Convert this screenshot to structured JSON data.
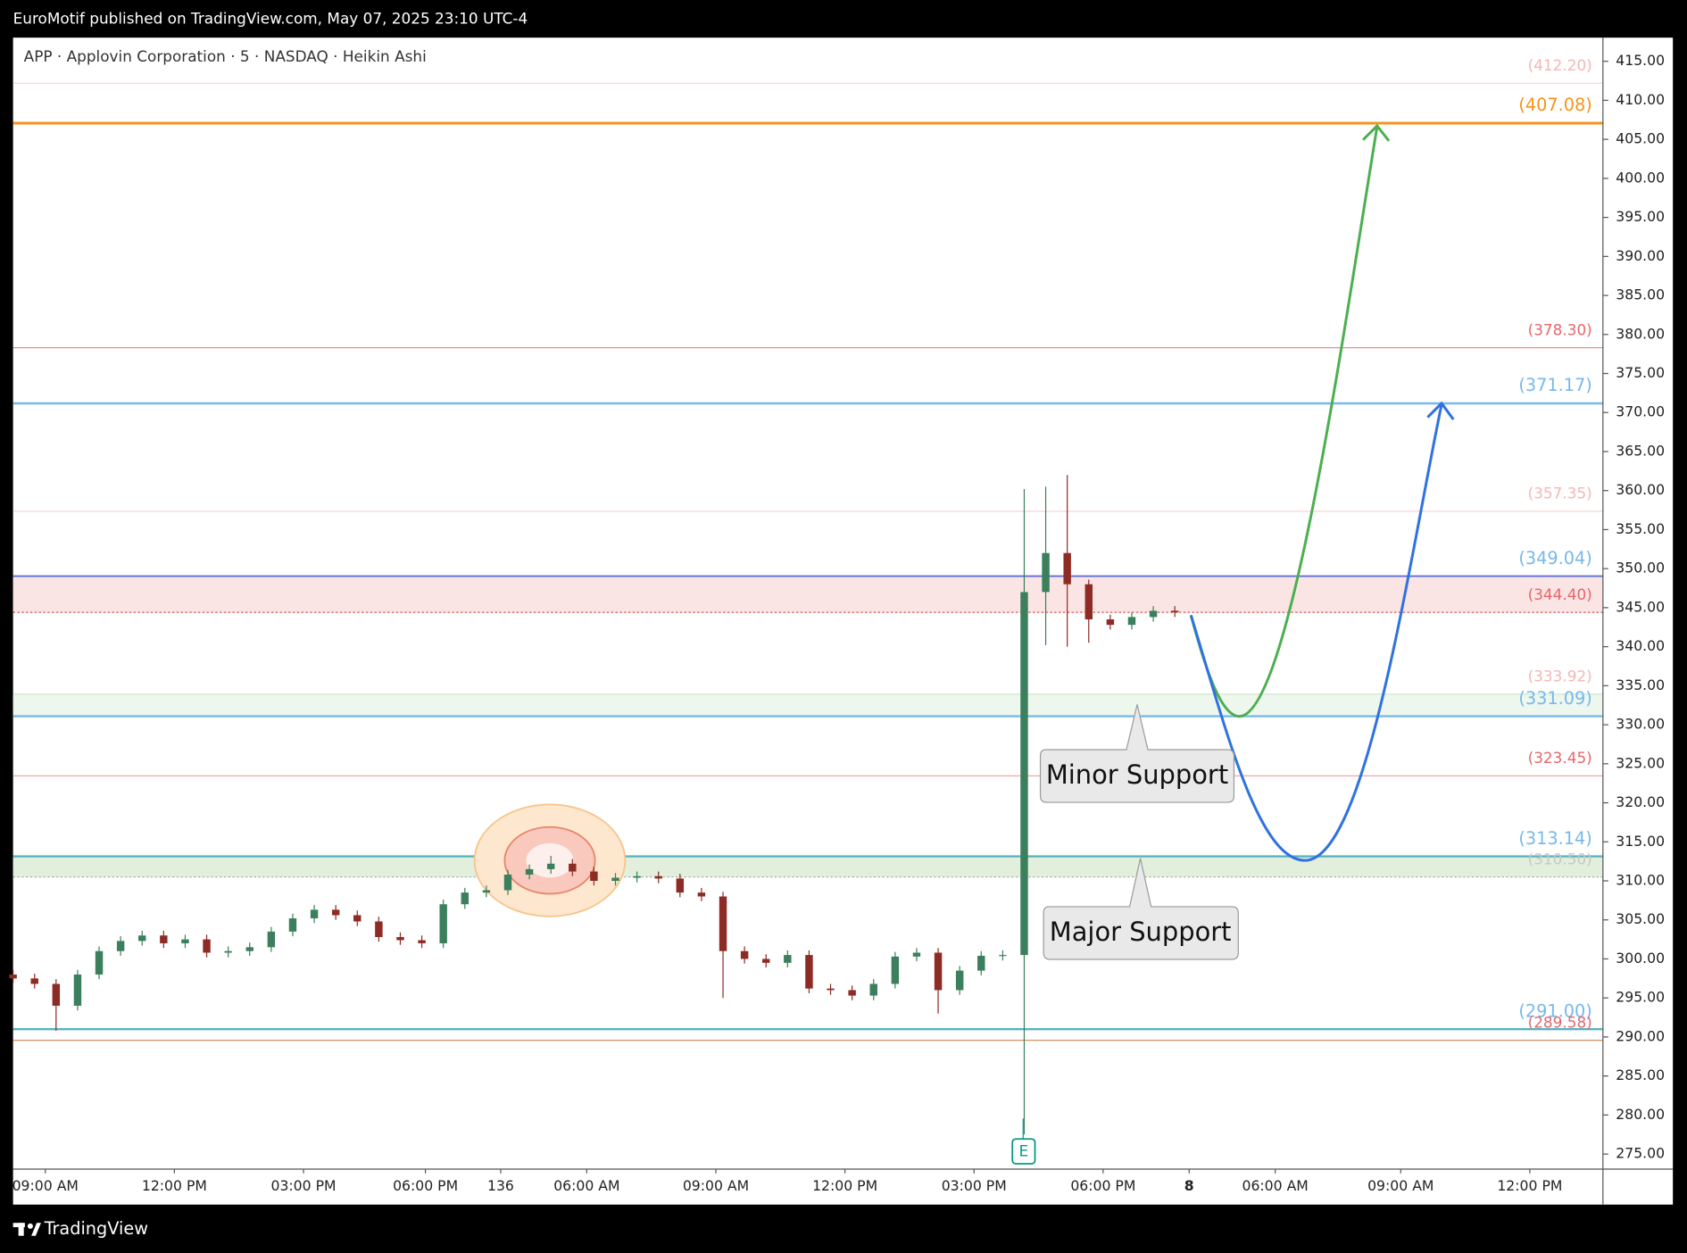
{
  "header": {
    "published": "EuroMotif published on TradingView.com, May 07, 2025 23:10 UTC-4"
  },
  "chart_data": {
    "type": "candlestick",
    "title": "APP · Applovin Corporation · 5 · NASDAQ · Heikin Ashi",
    "x": [
      0,
      6,
      12,
      18,
      24,
      30,
      36,
      42,
      48,
      54,
      60,
      66,
      72,
      78,
      84,
      90,
      96,
      102,
      108,
      114,
      120,
      126,
      132,
      138,
      144,
      150,
      156,
      162,
      168,
      174,
      180,
      186,
      192,
      198,
      204,
      210,
      216,
      222,
      228,
      234,
      240,
      246,
      252,
      258,
      264,
      270,
      276,
      282,
      288,
      294,
      300,
      306,
      312,
      318,
      324
    ],
    "open": [
      298,
      297.5,
      296.8,
      294,
      298,
      301,
      302.3,
      303,
      302,
      302.5,
      300.8,
      301,
      301.5,
      303.5,
      305.2,
      306.3,
      305.6,
      304.8,
      302.8,
      302.4,
      302,
      307,
      308.5,
      308.8,
      310.8,
      311.5,
      312.2,
      311.2,
      310,
      310.4,
      310.6,
      310.3,
      308.5,
      308,
      301,
      300,
      299.5,
      300.5,
      296.2,
      296,
      295.3,
      296.8,
      300.3,
      300.8,
      296,
      298.5,
      300.4,
      300.5,
      347,
      352,
      348,
      343.5,
      342.8,
      343.8,
      344.6
    ],
    "high": [
      298.6,
      298.1,
      297.4,
      298.6,
      301.6,
      302.9,
      303.6,
      303.6,
      303.1,
      303.1,
      301.6,
      302.1,
      304.1,
      305.8,
      306.9,
      306.9,
      306.2,
      305.4,
      303.4,
      303,
      307.6,
      309.1,
      309.4,
      311.4,
      312.1,
      313.2,
      312.8,
      311.8,
      311,
      311.2,
      311.2,
      310.9,
      309.1,
      308.6,
      301.6,
      300.6,
      301.1,
      301.1,
      296.8,
      296.6,
      297.4,
      300.9,
      301.4,
      301.4,
      299.1,
      301,
      301.1,
      360.2,
      360.5,
      362,
      348.6,
      344.1,
      344.4,
      345.2,
      345.2
    ],
    "low": [
      296.9,
      296.2,
      290.8,
      293.4,
      297.4,
      300.4,
      301.7,
      301.4,
      301.4,
      300.2,
      300.2,
      300.4,
      300.9,
      302.9,
      304.6,
      305,
      304.2,
      302.2,
      301.8,
      301.4,
      301.4,
      306.4,
      307.9,
      308.2,
      310.2,
      310.9,
      310.6,
      309.4,
      309.4,
      309.8,
      309.7,
      307.9,
      307.4,
      295,
      299.4,
      298.9,
      298.9,
      295.6,
      295.4,
      294.7,
      294.7,
      296.2,
      299.7,
      293,
      295.4,
      297.9,
      299.8,
      277.5,
      340.2,
      340,
      340.5,
      342.2,
      342.2,
      343.2,
      343.8
    ],
    "close": [
      297.5,
      296.8,
      294,
      298,
      301,
      302.3,
      303,
      302,
      302.5,
      300.8,
      301,
      301.5,
      303.5,
      305.2,
      306.3,
      305.6,
      304.8,
      302.8,
      302.4,
      302,
      307,
      308.5,
      308.8,
      310.8,
      311.5,
      312.2,
      311.2,
      310,
      310.4,
      310.6,
      310.3,
      308.5,
      308,
      301,
      300,
      299.5,
      300.5,
      296.2,
      296,
      295.3,
      296.8,
      300.3,
      300.8,
      296,
      298.5,
      300.4,
      300.5,
      347,
      352,
      348,
      343.5,
      342.8,
      343.8,
      344.6,
      344.4
    ],
    "up_color": "#3b7f5c",
    "down_color": "#8e2b25",
    "xlim": [
      0,
      443.4
    ],
    "xticks": [
      {
        "value": 9,
        "label": "09:00 AM"
      },
      {
        "value": 45,
        "label": "12:00 PM"
      },
      {
        "value": 81,
        "label": "03:00 PM"
      },
      {
        "value": 115,
        "label": "06:00 PM"
      },
      136,
      {
        "value": 160,
        "label": "06:00 AM"
      },
      {
        "value": 196,
        "label": "09:00 AM"
      },
      {
        "value": 232,
        "label": "12:00 PM"
      },
      {
        "value": 268,
        "label": "03:00 PM"
      },
      {
        "value": 304,
        "label": "06:00 PM"
      },
      {
        "value": 328,
        "label": "8"
      },
      {
        "value": 352,
        "label": "06:00 AM"
      },
      {
        "value": 387,
        "label": "09:00 AM"
      },
      {
        "value": 423,
        "label": "12:00 PM"
      }
    ],
    "ylim": [
      273.07,
      418.03
    ],
    "yticks": [
      {
        "value": 275,
        "label": "275.00"
      },
      {
        "value": 280,
        "label": "280.00"
      },
      {
        "value": 285,
        "label": "285.00"
      },
      {
        "value": 290,
        "label": "290.00"
      },
      {
        "value": 295,
        "label": "295.00"
      },
      {
        "value": 300,
        "label": "300.00"
      },
      {
        "value": 305,
        "label": "305.00"
      },
      {
        "value": 310,
        "label": "310.00"
      },
      {
        "value": 315,
        "label": "315.00"
      },
      {
        "value": 320,
        "label": "320.00"
      },
      {
        "value": 325,
        "label": "325.00"
      },
      {
        "value": 330,
        "label": "330.00"
      },
      {
        "value": 335,
        "label": "335.00"
      },
      {
        "value": 340,
        "label": "340.00"
      },
      {
        "value": 345,
        "label": "345.00"
      },
      {
        "value": 350,
        "label": "350.00"
      },
      {
        "value": 355,
        "label": "355.00"
      },
      {
        "value": 360,
        "label": "360.00"
      },
      {
        "value": 365,
        "label": "365.00"
      },
      {
        "value": 370,
        "label": "370.00"
      },
      {
        "value": 375,
        "label": "375.00"
      },
      {
        "value": 380,
        "label": "380.00"
      },
      {
        "value": 385,
        "label": "385.00"
      },
      {
        "value": 390,
        "label": "390.00"
      },
      {
        "value": 395,
        "label": "395.00"
      },
      {
        "value": 400,
        "label": "400.00"
      },
      {
        "value": 405,
        "label": "405.00"
      },
      {
        "value": 410,
        "label": "410.00"
      },
      {
        "value": 415,
        "label": "415.00"
      }
    ],
    "zones": [
      {
        "from": 344.4,
        "to": 349.04,
        "color": "#fbe4e4"
      },
      {
        "from": 331.09,
        "to": 333.92,
        "color": "#eef7ee"
      },
      {
        "from": 310.5,
        "to": 313.14,
        "color": "#e2efdd"
      }
    ],
    "levels": [
      {
        "value": 412.2,
        "label": "(412.20)",
        "color": "#f8d4d4",
        "width": 1,
        "label_color": "#f4b6b6"
      },
      {
        "value": 407.08,
        "label": "(407.08)",
        "color": "#f7931a",
        "width": 2.5,
        "label_color": "#f7931a"
      },
      {
        "value": 378.3,
        "label": "(378.30)",
        "color": "#f28b8b",
        "width": 1,
        "label_color": "#e5676b"
      },
      {
        "value": 371.17,
        "label": "(371.17)",
        "color": "#78b8ec",
        "width": 2,
        "label_color": "#78b8ec"
      },
      {
        "value": 357.35,
        "label": "(357.35)",
        "color": "#f8d4d4",
        "width": 1,
        "label_color": "#f4b6b6"
      },
      {
        "value": 349.04,
        "label": "(349.04)",
        "color": "#5b6fd6",
        "width": 1.5,
        "label_color": "#78b8ec"
      },
      {
        "value": 344.4,
        "label": "(344.40)",
        "color": "#d9534f",
        "width": 1,
        "dash": "2,2",
        "label_color": "#e5676b"
      },
      {
        "value": 333.92,
        "label": "(333.92)",
        "color": "#c8e6c9",
        "width": 1,
        "label_color": "#f4b6b6"
      },
      {
        "value": 331.09,
        "label": "(331.09)",
        "color": "#78b8ec",
        "width": 2,
        "label_color": "#78b8ec"
      },
      {
        "value": 323.45,
        "label": "(323.45)",
        "color": "#f5a3a3",
        "width": 1,
        "label_color": "#e5676b"
      },
      {
        "value": 313.14,
        "label": "(313.14)",
        "color": "#58b3c0",
        "width": 2,
        "label_color": "#78b8ec"
      },
      {
        "value": 310.5,
        "label": "(310.50)",
        "color": "#a5b89a",
        "width": 1,
        "dash": "2,2",
        "label_color": "#c8c8c8"
      },
      {
        "value": 291.0,
        "label": "(291.00)",
        "color": "#58b3c0",
        "width": 2,
        "label_color": "#78b8ec"
      },
      {
        "value": 289.58,
        "label": "(289.58)",
        "color": "#d29060",
        "width": 1,
        "label_color": "#e5676b"
      }
    ],
    "annotations": [
      "Minor Support",
      "Major Support"
    ],
    "earnings_marker": "E"
  },
  "footer": {
    "brand": "TradingView"
  }
}
